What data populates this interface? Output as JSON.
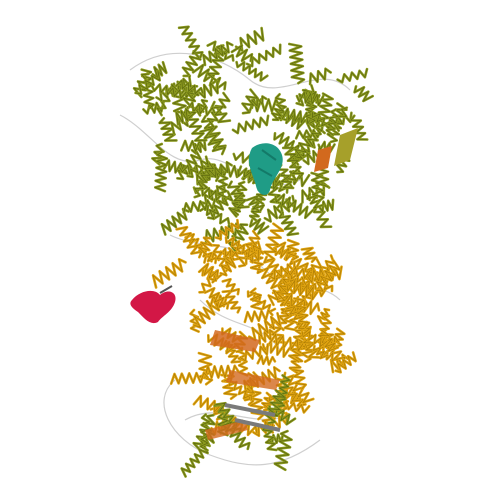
{
  "image": {
    "subject": "protein-ribbon",
    "background_color": "#ffffff"
  },
  "palette": {
    "olive": "#8c9a1f",
    "olive_dark": "#5f6b10",
    "gold": "#e0a411",
    "gold_dark": "#b07f06",
    "orange": "#d2691e",
    "teal": "#1f9c86",
    "red": "#d31746",
    "gray": "#7a7a7a",
    "coil": "#cfcfcf"
  },
  "domains": [
    {
      "name": "upper-olive-domain",
      "color": "olive"
    },
    {
      "name": "lower-gold-domain",
      "color": "gold"
    },
    {
      "name": "bottom-mixed-domain",
      "color": "olive"
    },
    {
      "name": "teal-ligand",
      "color": "teal"
    },
    {
      "name": "red-ligand",
      "color": "red"
    },
    {
      "name": "orange-strand-upper",
      "color": "orange"
    },
    {
      "name": "orange-strand-lower",
      "color": "orange"
    }
  ]
}
